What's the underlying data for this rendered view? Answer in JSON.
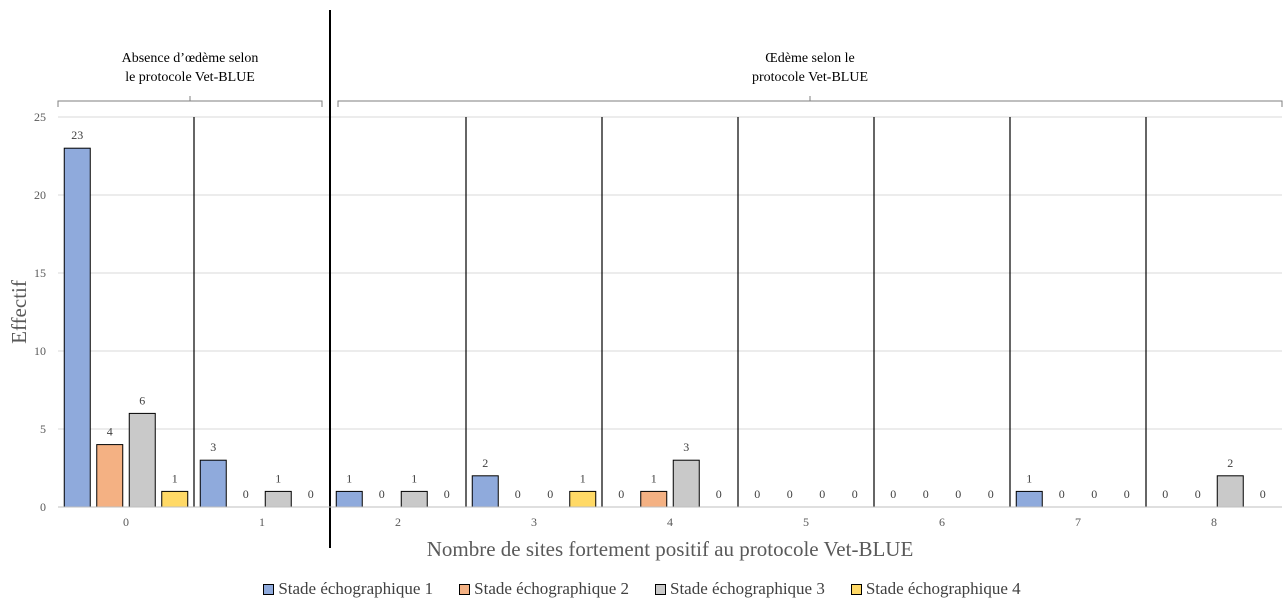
{
  "chart_data": {
    "type": "bar",
    "xlabel": "Nombre de sites fortement positif au protocole Vet-BLUE",
    "ylabel": "Effectif",
    "ylim": [
      0,
      25
    ],
    "yticks": [
      0,
      5,
      10,
      15,
      20,
      25
    ],
    "grid": true,
    "legend_position": "bottom",
    "categories": [
      "0",
      "1",
      "2",
      "3",
      "4",
      "5",
      "6",
      "7",
      "8"
    ],
    "series": [
      {
        "name": "Stade échographique 1",
        "color": "#8faadc",
        "values": [
          23,
          3,
          1,
          2,
          0,
          0,
          0,
          1,
          0
        ]
      },
      {
        "name": "Stade échographique 2",
        "color": "#f4b183",
        "values": [
          4,
          0,
          0,
          0,
          1,
          0,
          0,
          0,
          0
        ]
      },
      {
        "name": "Stade échographique 3",
        "color": "#c9c9c9",
        "values": [
          6,
          1,
          1,
          0,
          3,
          0,
          0,
          0,
          2
        ]
      },
      {
        "name": "Stade échographique 4",
        "color": "#ffd966",
        "values": [
          1,
          0,
          0,
          1,
          0,
          0,
          0,
          0,
          0
        ]
      }
    ],
    "groups": [
      {
        "label_lines": [
          "Absence d’œdème selon",
          "le protocole Vet-BLUE"
        ],
        "categories": [
          "0",
          "1"
        ]
      },
      {
        "label_lines": [
          "Œdème selon le",
          "protocole Vet-BLUE"
        ],
        "categories": [
          "2",
          "3",
          "4",
          "5",
          "6",
          "7",
          "8"
        ]
      }
    ]
  }
}
